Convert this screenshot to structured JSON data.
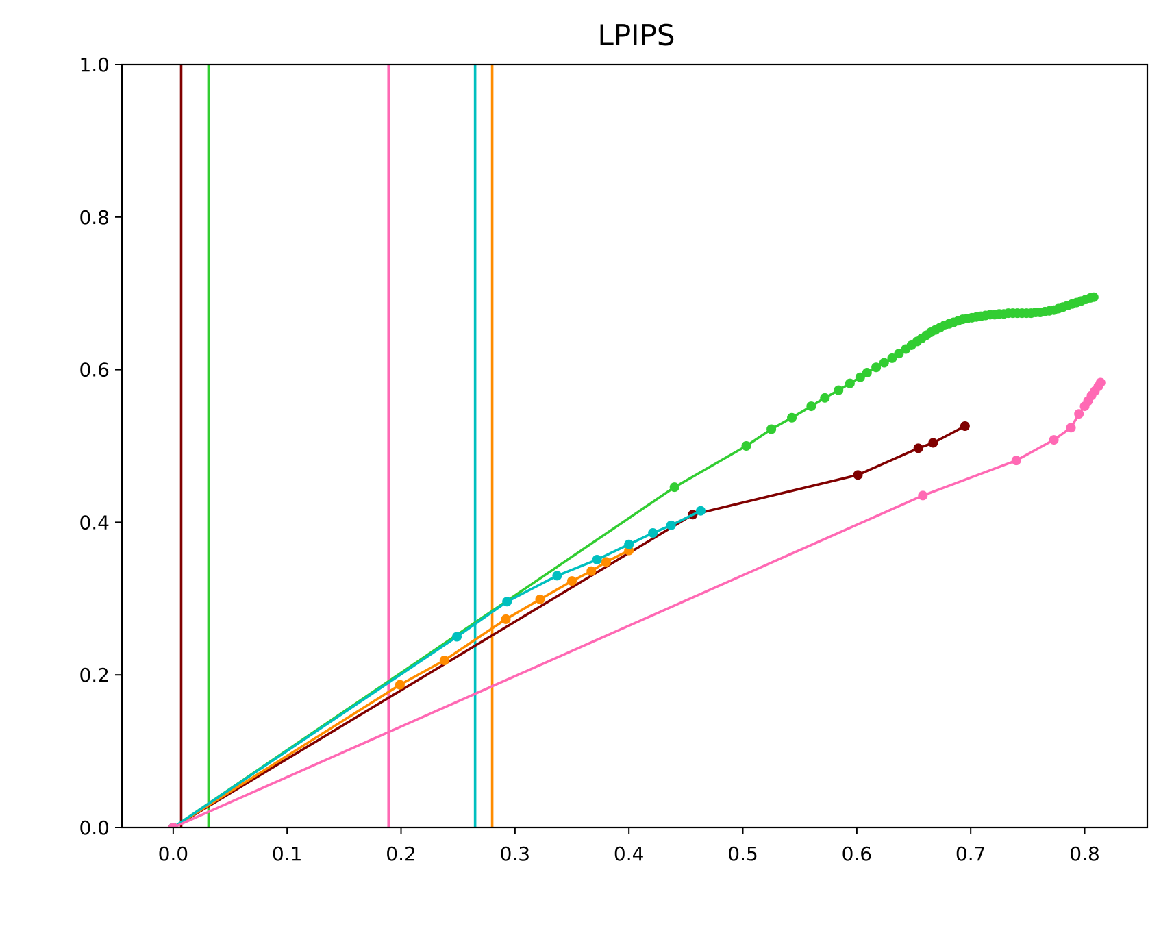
{
  "chart_data": {
    "type": "line",
    "title": "LPIPS",
    "xlabel": "",
    "ylabel": "",
    "xlim": [
      -0.045,
      0.855
    ],
    "ylim": [
      0,
      1.0
    ],
    "xticks": [
      "0.0",
      "0.1",
      "0.2",
      "0.3",
      "0.4",
      "0.5",
      "0.6",
      "0.7",
      "0.8"
    ],
    "yticks": [
      "0.0",
      "0.2",
      "0.4",
      "0.6",
      "0.8",
      "1.0"
    ],
    "grid": false,
    "legend": "none",
    "vlines": [
      {
        "x": 0.007,
        "color": "#800000"
      },
      {
        "x": 0.031,
        "color": "#32cd32"
      },
      {
        "x": 0.189,
        "color": "#ff69b4"
      },
      {
        "x": 0.265,
        "color": "#00bfbf"
      },
      {
        "x": 0.28,
        "color": "#ff8c00"
      }
    ],
    "series": [
      {
        "color": "#32cd32",
        "x": [
          0.0,
          0.44,
          0.503,
          0.525,
          0.543,
          0.56,
          0.572,
          0.584,
          0.594,
          0.603,
          0.609,
          0.617,
          0.624,
          0.631,
          0.637,
          0.643,
          0.648,
          0.653,
          0.657,
          0.661,
          0.665,
          0.669,
          0.673,
          0.677,
          0.681,
          0.685,
          0.689,
          0.693,
          0.697,
          0.701,
          0.705,
          0.709,
          0.713,
          0.717,
          0.721,
          0.725,
          0.729,
          0.733,
          0.737,
          0.741,
          0.745,
          0.749,
          0.753,
          0.757,
          0.761,
          0.765,
          0.769,
          0.773,
          0.777,
          0.781,
          0.785,
          0.789,
          0.793,
          0.797,
          0.801,
          0.805,
          0.808
        ],
        "y": [
          0.0,
          0.446,
          0.5,
          0.522,
          0.537,
          0.552,
          0.563,
          0.573,
          0.582,
          0.59,
          0.596,
          0.603,
          0.609,
          0.615,
          0.621,
          0.627,
          0.632,
          0.637,
          0.641,
          0.645,
          0.649,
          0.652,
          0.655,
          0.658,
          0.66,
          0.662,
          0.664,
          0.666,
          0.667,
          0.668,
          0.669,
          0.67,
          0.671,
          0.672,
          0.672,
          0.673,
          0.673,
          0.674,
          0.674,
          0.674,
          0.674,
          0.674,
          0.674,
          0.675,
          0.675,
          0.676,
          0.677,
          0.678,
          0.68,
          0.682,
          0.684,
          0.686,
          0.688,
          0.69,
          0.692,
          0.694,
          0.695
        ]
      },
      {
        "color": "#800000",
        "x": [
          0.0,
          0.456,
          0.601,
          0.654,
          0.667,
          0.695
        ],
        "y": [
          0.0,
          0.41,
          0.462,
          0.497,
          0.504,
          0.526
        ]
      },
      {
        "color": "#ff8c00",
        "x": [
          0.0,
          0.199,
          0.238,
          0.292,
          0.322,
          0.35,
          0.367,
          0.38,
          0.4
        ],
        "y": [
          0.0,
          0.187,
          0.219,
          0.273,
          0.299,
          0.323,
          0.336,
          0.348,
          0.363
        ]
      },
      {
        "color": "#00bfbf",
        "x": [
          0.0,
          0.249,
          0.293,
          0.337,
          0.372,
          0.4,
          0.421,
          0.437,
          0.463
        ],
        "y": [
          0.0,
          0.25,
          0.296,
          0.33,
          0.351,
          0.371,
          0.386,
          0.396,
          0.415
        ]
      },
      {
        "color": "#ff69b4",
        "x": [
          0.0,
          0.658,
          0.74,
          0.773,
          0.788,
          0.795,
          0.8,
          0.803,
          0.806,
          0.809,
          0.812,
          0.814
        ],
        "y": [
          0.0,
          0.435,
          0.481,
          0.508,
          0.524,
          0.542,
          0.552,
          0.559,
          0.566,
          0.572,
          0.578,
          0.583
        ]
      }
    ]
  }
}
